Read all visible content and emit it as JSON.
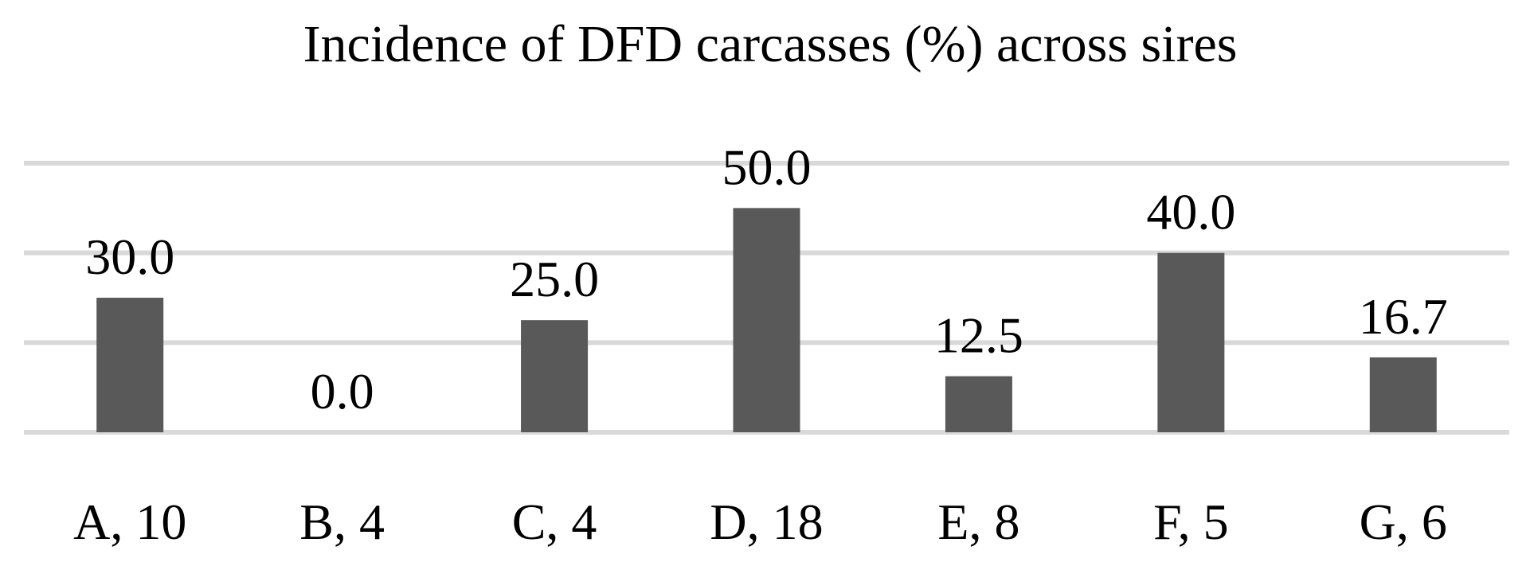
{
  "chart_data": {
    "type": "bar",
    "title": "Incidence of DFD carcasses (%) across sires",
    "categories": [
      "A, 10",
      "B, 4",
      "C, 4",
      "D, 18",
      "E, 8",
      "F, 5",
      "G, 6"
    ],
    "values": [
      30.0,
      0.0,
      25.0,
      50.0,
      12.5,
      40.0,
      16.7
    ],
    "data_labels": [
      "30.0",
      "0.0",
      "25.0",
      "50.0",
      "12.5",
      "40.0",
      "16.7"
    ],
    "xlabel": "",
    "ylabel": "",
    "ylim": [
      0,
      60
    ],
    "grid": true,
    "legend": "none",
    "bar_color": "#595959",
    "grid_color": "#d9d9d9"
  }
}
